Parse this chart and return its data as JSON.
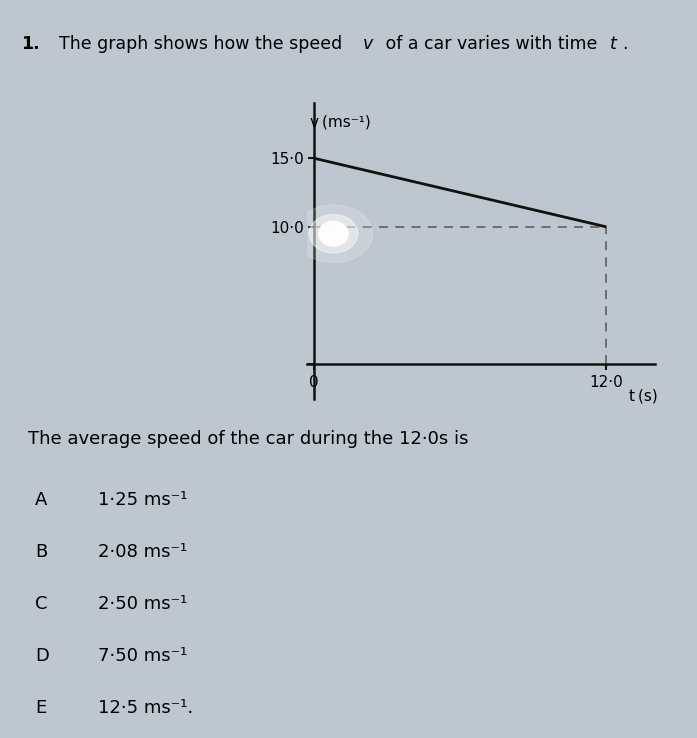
{
  "line_x": [
    0,
    12.0
  ],
  "line_y": [
    15.0,
    10.0
  ],
  "dashed_h_y": 10.0,
  "dashed_v_x": 12.0,
  "ytick_positions": [
    0,
    10.0,
    15.0
  ],
  "ytick_labels": [
    "0",
    "10·0",
    "15·0"
  ],
  "xtick_positions": [
    0,
    12.0
  ],
  "xtick_labels": [
    "0",
    "12·0"
  ],
  "xlim": [
    -0.3,
    14.0
  ],
  "ylim": [
    -2.5,
    19.0
  ],
  "line_color": "#111111",
  "dashed_color": "#666666",
  "bg_color": "#bec6d0",
  "ax_color": "#111111",
  "ylabel_text": "v (ms⁻¹)",
  "xlabel_text": "t (s)",
  "answer_question": "The average speed of the car during the 12·0s is",
  "options": [
    [
      "A",
      "1·25 ms⁻¹"
    ],
    [
      "B",
      "2·08 ms⁻¹"
    ],
    [
      "C",
      "2·50 ms⁻¹"
    ],
    [
      "D",
      "7·50 ms⁻¹"
    ],
    [
      "E",
      "12·5 ms⁻¹."
    ]
  ],
  "glow_x": 0.8,
  "glow_y": 9.5,
  "question_number": "1.",
  "question_main": "The graph shows how the speed ",
  "v_text": "v",
  "question_mid": " of a car varies with time ",
  "t_text": "t",
  "question_end": "."
}
